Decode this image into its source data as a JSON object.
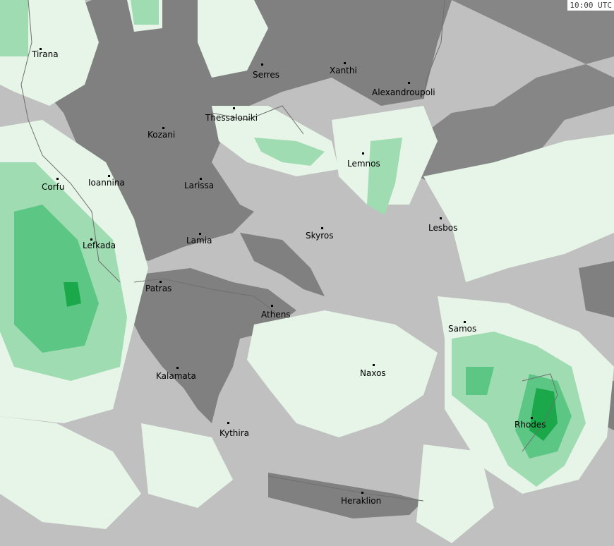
{
  "timestamp": "10:00 UTC",
  "colors": {
    "no_cloud_land": "#808080",
    "no_cloud_sea": "#c0c0c0",
    "light_precip": "#e6f5e8",
    "moderate_precip": "#9fdcb2",
    "heavy_precip": "#5cc684",
    "very_heavy_precip": "#1aa84a",
    "coastline": "#808080"
  },
  "cities": [
    {
      "name": "Tirana"
    },
    {
      "name": "Serres"
    },
    {
      "name": "Xanthi"
    },
    {
      "name": "Alexandroupoli"
    },
    {
      "name": "Thessaloniki"
    },
    {
      "name": "Kozani"
    },
    {
      "name": "Lemnos"
    },
    {
      "name": "Corfu"
    },
    {
      "name": "Ioannina"
    },
    {
      "name": "Larissa"
    },
    {
      "name": "Lesbos"
    },
    {
      "name": "Skyros"
    },
    {
      "name": "Lamia"
    },
    {
      "name": "Lefkada"
    },
    {
      "name": "Patras"
    },
    {
      "name": "Athens"
    },
    {
      "name": "Samos"
    },
    {
      "name": "Naxos"
    },
    {
      "name": "Kalamata"
    },
    {
      "name": "Rhodes"
    },
    {
      "name": "Kythira"
    },
    {
      "name": "Heraklion"
    }
  ]
}
